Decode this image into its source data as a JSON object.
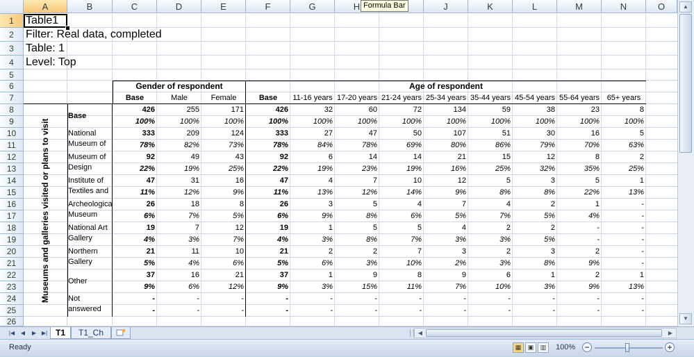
{
  "tooltip": "Formula Bar",
  "columns": [
    "A",
    "B",
    "C",
    "D",
    "E",
    "F",
    "G",
    "H",
    "I",
    "J",
    "K",
    "L",
    "M",
    "N",
    "O"
  ],
  "rows": [
    "1",
    "2",
    "3",
    "4",
    "5",
    "6",
    "7",
    "8",
    "9",
    "10",
    "11",
    "12",
    "13",
    "14",
    "15",
    "16",
    "17",
    "18",
    "19",
    "20",
    "21",
    "22",
    "23",
    "24",
    "25",
    "26"
  ],
  "meta": {
    "table_title": "Table1",
    "filter": "Filter: Real data, completed",
    "table": "Table: 1",
    "level": "Level: Top"
  },
  "headers": {
    "gender": "Gender of respondent",
    "age": "Age of respondent",
    "sub": [
      "Base",
      "Male",
      "Female",
      "Base",
      "11-16 years",
      "17-20 years",
      "21-24 years",
      "25-34 years",
      "35-44 years",
      "45-54 years",
      "55-64 years",
      "65+ years"
    ],
    "side": "Museums and galleries visited or plans to visit"
  },
  "table_rows": [
    {
      "label": "Base",
      "counts": [
        "426",
        "255",
        "171",
        "426",
        "32",
        "60",
        "72",
        "134",
        "59",
        "38",
        "23",
        "8"
      ],
      "pcts": [
        "100%",
        "100%",
        "100%",
        "100%",
        "100%",
        "100%",
        "100%",
        "100%",
        "100%",
        "100%",
        "100%",
        "100%"
      ]
    },
    {
      "label": "National Museum of",
      "counts": [
        "333",
        "209",
        "124",
        "333",
        "27",
        "47",
        "50",
        "107",
        "51",
        "30",
        "16",
        "5"
      ],
      "pcts": [
        "78%",
        "82%",
        "73%",
        "78%",
        "84%",
        "78%",
        "69%",
        "80%",
        "86%",
        "79%",
        "70%",
        "63%"
      ]
    },
    {
      "label": "Museum of Design",
      "counts": [
        "92",
        "49",
        "43",
        "92",
        "6",
        "14",
        "14",
        "21",
        "15",
        "12",
        "8",
        "2"
      ],
      "pcts": [
        "22%",
        "19%",
        "25%",
        "22%",
        "19%",
        "23%",
        "19%",
        "16%",
        "25%",
        "32%",
        "35%",
        "25%"
      ]
    },
    {
      "label": "Institute of Textiles and",
      "counts": [
        "47",
        "31",
        "16",
        "47",
        "4",
        "7",
        "10",
        "12",
        "5",
        "3",
        "5",
        "1"
      ],
      "pcts": [
        "11%",
        "12%",
        "9%",
        "11%",
        "13%",
        "12%",
        "14%",
        "9%",
        "8%",
        "8%",
        "22%",
        "13%"
      ]
    },
    {
      "label": "Archeological Museum",
      "counts": [
        "26",
        "18",
        "8",
        "26",
        "3",
        "5",
        "4",
        "7",
        "4",
        "2",
        "1",
        "-"
      ],
      "pcts": [
        "6%",
        "7%",
        "5%",
        "6%",
        "9%",
        "8%",
        "6%",
        "5%",
        "7%",
        "5%",
        "4%",
        "-"
      ]
    },
    {
      "label": "National Art Gallery",
      "counts": [
        "19",
        "7",
        "12",
        "19",
        "1",
        "5",
        "5",
        "4",
        "2",
        "2",
        "-",
        "-"
      ],
      "pcts": [
        "4%",
        "3%",
        "7%",
        "4%",
        "3%",
        "8%",
        "7%",
        "3%",
        "3%",
        "5%",
        "-",
        "-"
      ]
    },
    {
      "label": "Northern Gallery",
      "counts": [
        "21",
        "11",
        "10",
        "21",
        "2",
        "2",
        "7",
        "3",
        "2",
        "3",
        "2",
        "-"
      ],
      "pcts": [
        "5%",
        "4%",
        "6%",
        "5%",
        "6%",
        "3%",
        "10%",
        "2%",
        "3%",
        "8%",
        "9%",
        "-"
      ]
    },
    {
      "label": "Other",
      "counts": [
        "37",
        "16",
        "21",
        "37",
        "1",
        "9",
        "8",
        "9",
        "6",
        "1",
        "2",
        "1"
      ],
      "pcts": [
        "9%",
        "6%",
        "12%",
        "9%",
        "3%",
        "15%",
        "11%",
        "7%",
        "10%",
        "3%",
        "9%",
        "13%"
      ]
    },
    {
      "label": "Not answered",
      "counts": [
        "-",
        "-",
        "-",
        "-",
        "-",
        "-",
        "-",
        "-",
        "-",
        "-",
        "-",
        "-"
      ],
      "pcts": [
        "-",
        "-",
        "-",
        "-",
        "-",
        "-",
        "-",
        "-",
        "-",
        "-",
        "-",
        "-"
      ]
    }
  ],
  "sheet_tabs": [
    "T1",
    "T1_Ch"
  ],
  "status": {
    "ready": "Ready",
    "zoom": "100%"
  }
}
